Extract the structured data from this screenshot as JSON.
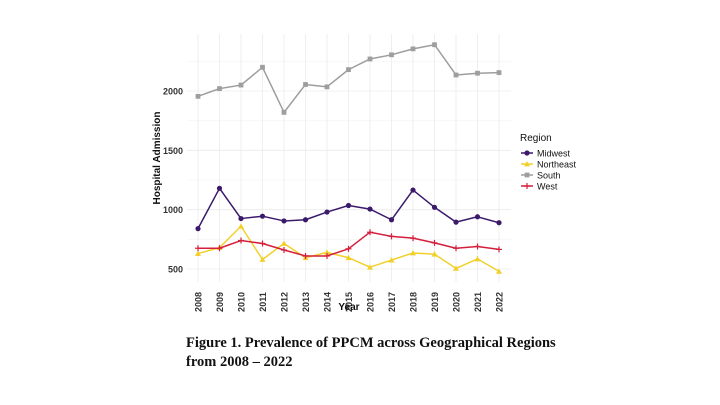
{
  "chart_data": {
    "type": "line",
    "xlabel": "Year",
    "ylabel": "Hospital Admission",
    "x": [
      "2008",
      "2009",
      "2010",
      "2011",
      "2012",
      "2013",
      "2014",
      "2015",
      "2016",
      "2017",
      "2018",
      "2019",
      "2020",
      "2021",
      "2022"
    ],
    "ylim": [
      400,
      2450
    ],
    "yticks": [
      500,
      1000,
      1500,
      2000
    ],
    "grid": true,
    "legend": {
      "title": "Region",
      "position": "right"
    },
    "series": [
      {
        "name": "Midwest",
        "color": "#3b1a6b",
        "marker": "circle",
        "values": [
          840,
          1180,
          925,
          945,
          905,
          915,
          980,
          1035,
          1005,
          915,
          1165,
          1020,
          895,
          940,
          890
        ]
      },
      {
        "name": "Northeast",
        "color": "#f2d02c",
        "marker": "triangle",
        "values": [
          630,
          680,
          860,
          580,
          715,
          595,
          640,
          595,
          515,
          575,
          635,
          625,
          505,
          585,
          480
        ]
      },
      {
        "name": "South",
        "color": "#9e9e9e",
        "marker": "square",
        "values": [
          1955,
          2020,
          2050,
          2200,
          1820,
          2055,
          2035,
          2180,
          2270,
          2305,
          2355,
          2390,
          2135,
          2150,
          2155
        ]
      },
      {
        "name": "West",
        "color": "#d41f3c",
        "marker": "cross",
        "values": [
          675,
          675,
          740,
          715,
          660,
          610,
          610,
          670,
          810,
          775,
          760,
          720,
          675,
          690,
          665
        ]
      }
    ]
  },
  "caption": {
    "line1": "Figure 1. Prevalence of PPCM across Geographical Regions",
    "line2": "from 2008 – 2022"
  }
}
